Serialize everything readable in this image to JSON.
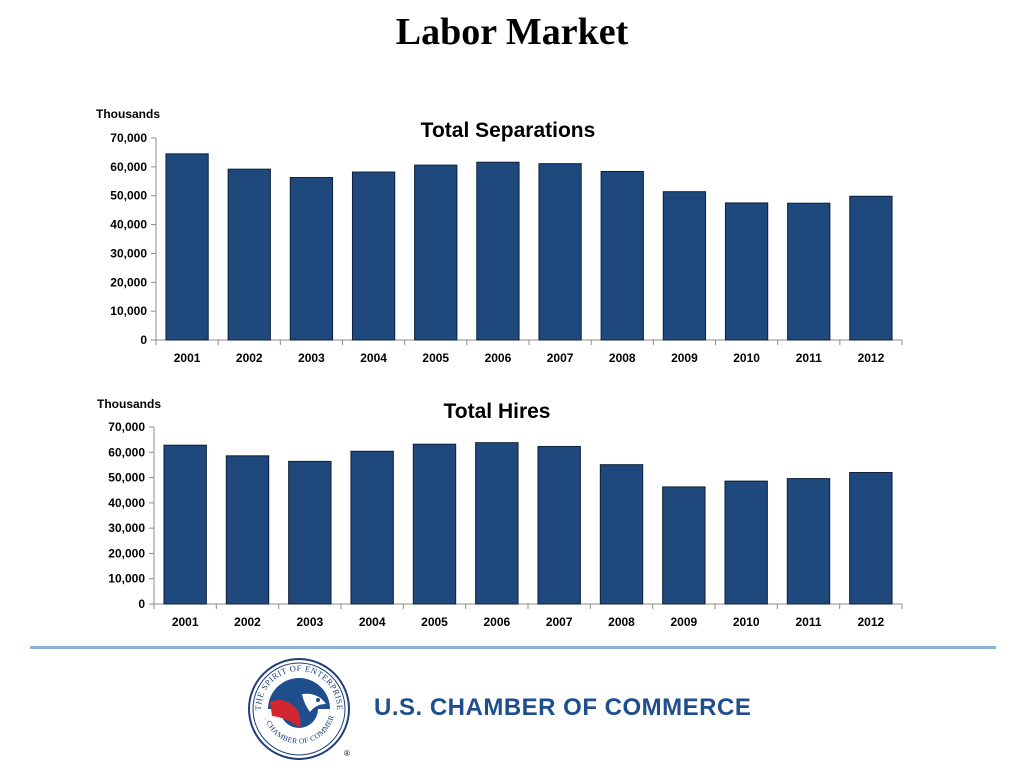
{
  "slide": {
    "title": "Labor Market"
  },
  "brand": {
    "name": "U.S. CHAMBER OF COMMERCE",
    "logo_text_top": "THE SPIRIT OF ENTERPRISE",
    "logo_text_bottom": "U.S. CHAMBER OF COMMERCE",
    "registered_mark": "®",
    "colors": {
      "blue": "#1f4e8c",
      "red": "#d22630",
      "ring": "#1f3f7a"
    }
  },
  "chart_data": [
    {
      "type": "bar",
      "title": "Total Separations",
      "unit_label": "Thousands",
      "categories": [
        "2001",
        "2002",
        "2003",
        "2004",
        "2005",
        "2006",
        "2007",
        "2008",
        "2009",
        "2010",
        "2011",
        "2012"
      ],
      "values": [
        64500,
        59200,
        56300,
        58200,
        60600,
        61600,
        61100,
        58400,
        51400,
        47500,
        47400,
        49800
      ],
      "ylim": [
        0,
        70000
      ],
      "yticks": [
        0,
        10000,
        20000,
        30000,
        40000,
        50000,
        60000,
        70000
      ],
      "ytick_labels": [
        "0",
        "10,000",
        "20,000",
        "30,000",
        "40,000",
        "50,000",
        "60,000",
        "70,000"
      ],
      "bar_color": "#1f497d",
      "grid": false,
      "legend": "none"
    },
    {
      "type": "bar",
      "title": "Total Hires",
      "unit_label": "Thousands",
      "categories": [
        "2001",
        "2002",
        "2003",
        "2004",
        "2005",
        "2006",
        "2007",
        "2008",
        "2009",
        "2010",
        "2011",
        "2012"
      ],
      "values": [
        62800,
        58600,
        56400,
        60400,
        63200,
        63800,
        62300,
        55100,
        46300,
        48600,
        49600,
        52000
      ],
      "ylim": [
        0,
        70000
      ],
      "yticks": [
        0,
        10000,
        20000,
        30000,
        40000,
        50000,
        60000,
        70000
      ],
      "ytick_labels": [
        "0",
        "10,000",
        "20,000",
        "30,000",
        "40,000",
        "50,000",
        "60,000",
        "70,000"
      ],
      "bar_color": "#1f497d",
      "grid": false,
      "legend": "none"
    }
  ]
}
